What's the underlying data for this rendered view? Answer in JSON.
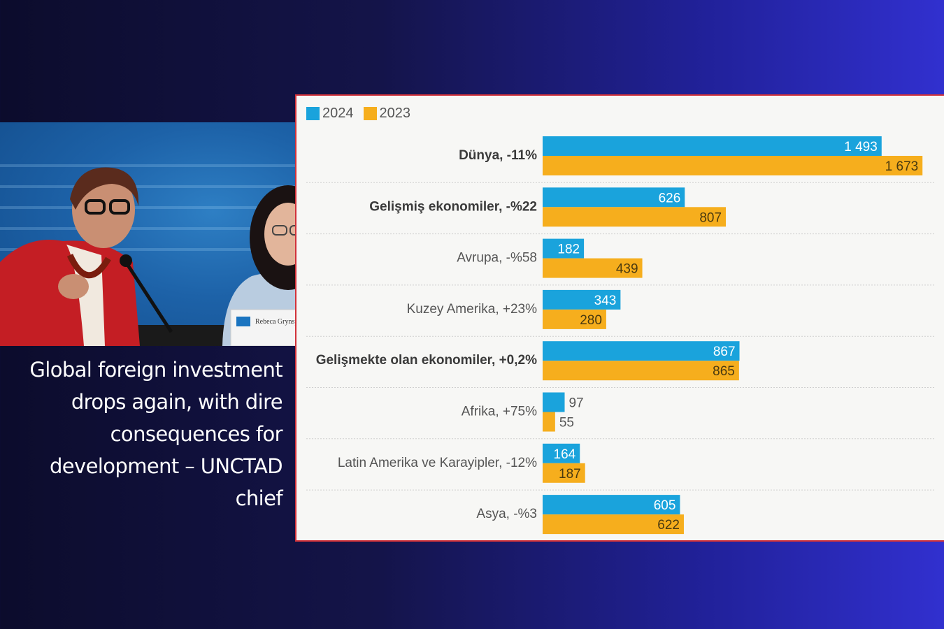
{
  "caption": "Global foreign investment drops again, with dire consequences for development – UNCTAD chief",
  "photo": {
    "nameplate_name": "Rebeca Grynspan"
  },
  "colors": {
    "series_2024": "#1aa3dc",
    "series_2023": "#f6ae1d",
    "panel_border": "#d1323a"
  },
  "chart_data": {
    "type": "bar",
    "orientation": "horizontal",
    "categories": [
      "Dünya, -11%",
      "Gelişmiş ekonomiler, -%22",
      "Avrupa, -%58",
      "Kuzey Amerika, +23%",
      "Gelişmekte olan ekonomiler, +0,2%",
      "Afrika, +75%",
      "Latin Amerika ve Karayipler, -12%",
      "Asya, -%3"
    ],
    "bold_categories": [
      0,
      1,
      4
    ],
    "series": [
      {
        "name": "2024",
        "values": [
          1493,
          626,
          182,
          343,
          867,
          97,
          164,
          605
        ],
        "labels": [
          "1 493",
          "626",
          "182",
          "343",
          "867",
          "97",
          "164",
          "605"
        ]
      },
      {
        "name": "2023",
        "values": [
          1673,
          807,
          439,
          280,
          865,
          55,
          187,
          622
        ],
        "labels": [
          "1 673",
          "807",
          "439",
          "280",
          "865",
          "55",
          "187",
          "622"
        ]
      }
    ],
    "xlim": [
      0,
      1700
    ],
    "legend_position": "top-left",
    "grid": false
  }
}
